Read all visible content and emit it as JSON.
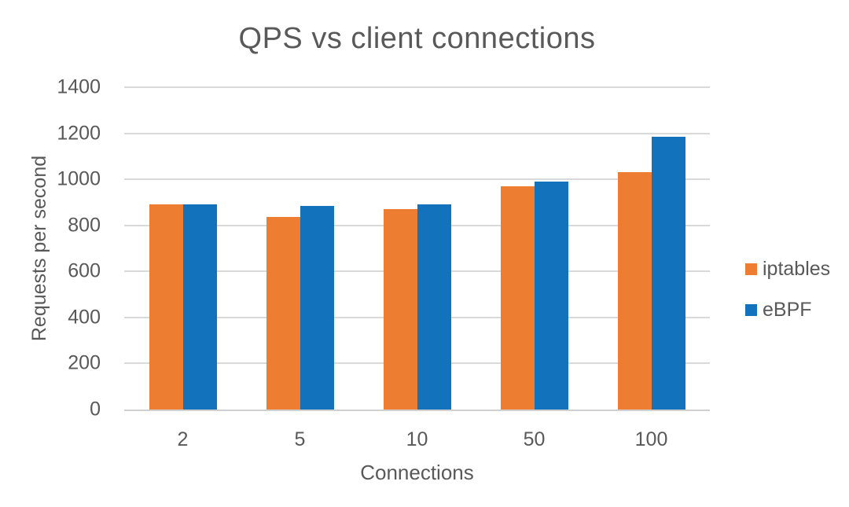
{
  "colors": {
    "iptables": "#ED7D31",
    "ebpf": "#1272BC",
    "text": "#595959",
    "grid": "#D9D9D9",
    "axis": "#D0D0D0"
  },
  "chart_data": {
    "type": "bar",
    "title": "QPS vs client connections",
    "xlabel": "Connections",
    "ylabel": "Requests per second",
    "categories": [
      "2",
      "5",
      "10",
      "50",
      "100"
    ],
    "series": [
      {
        "name": "iptables",
        "color": "#ED7D31",
        "values": [
          890,
          835,
          870,
          970,
          1030
        ]
      },
      {
        "name": "eBPF",
        "color": "#1272BC",
        "values": [
          890,
          885,
          890,
          990,
          1185
        ]
      }
    ],
    "ylim": [
      0,
      1400
    ],
    "ytick_step": 200,
    "grid": true,
    "legend_position": "right"
  }
}
